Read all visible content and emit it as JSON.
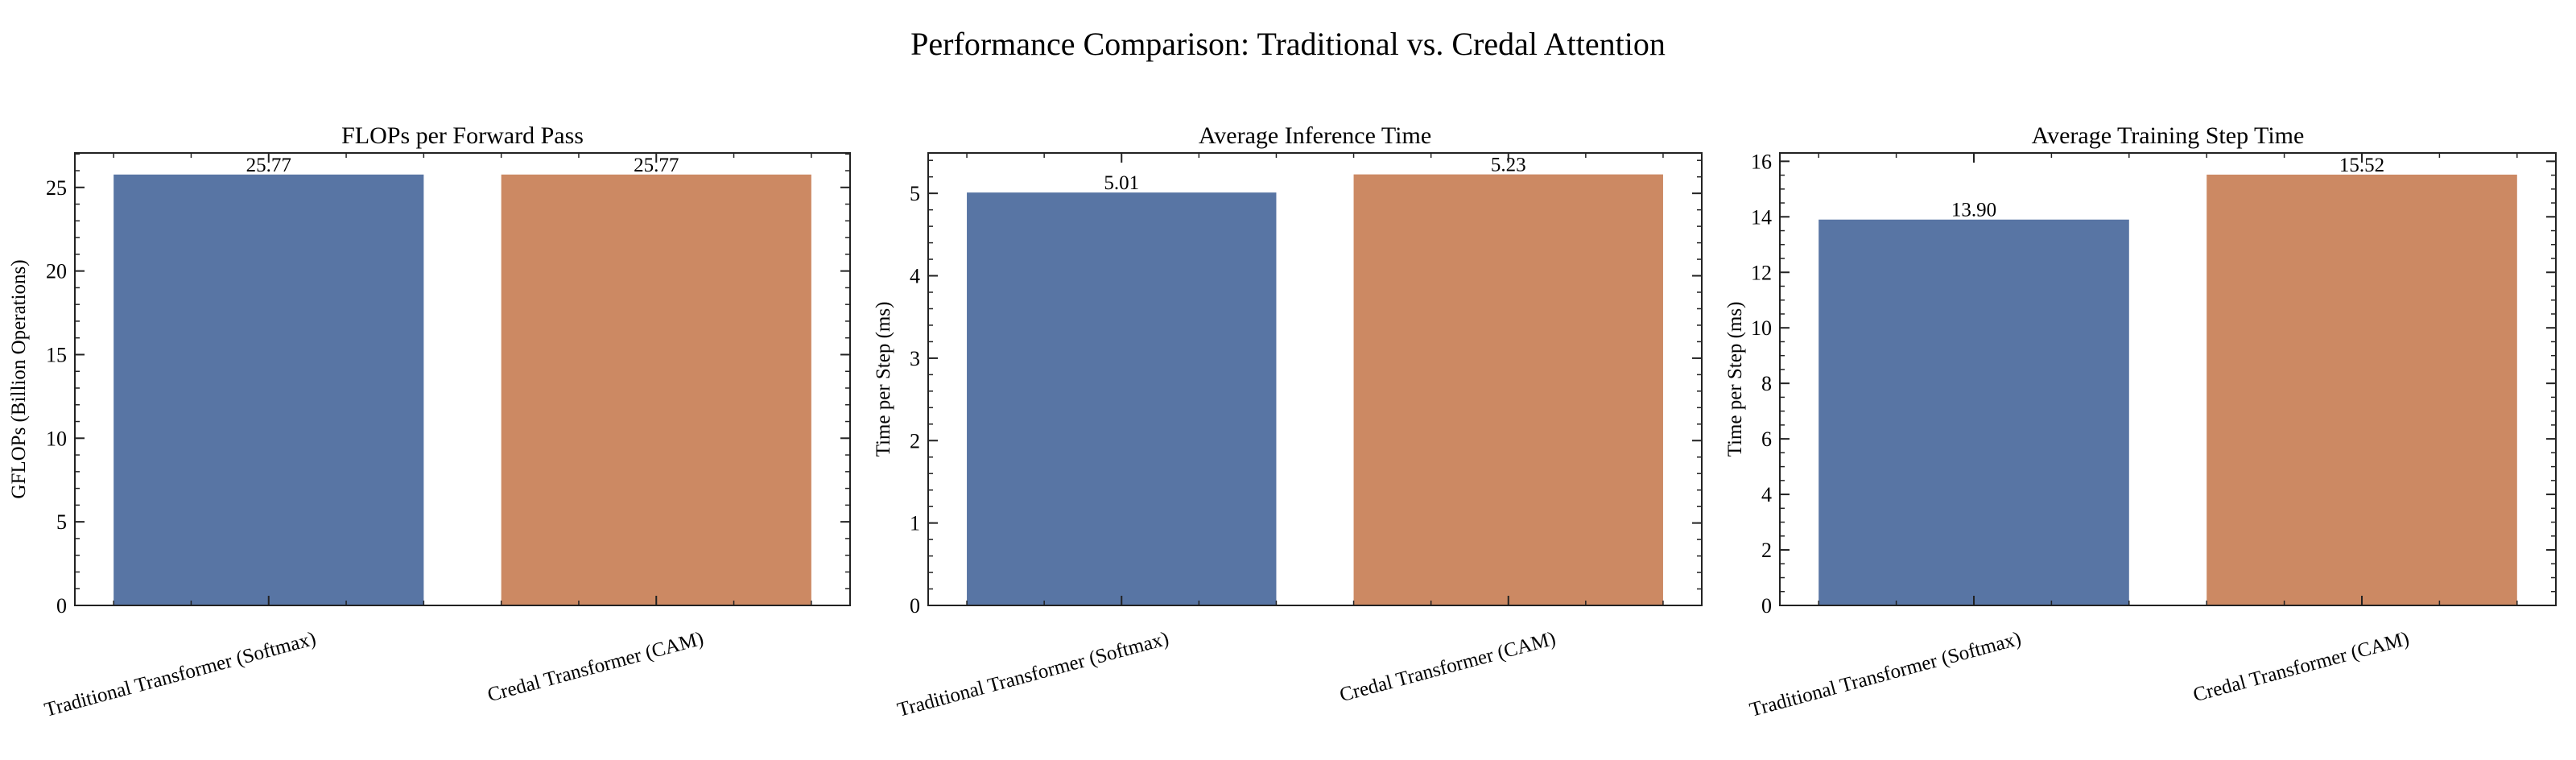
{
  "chart_data": {
    "title": "Performance Comparison: Traditional vs. Credal Attention",
    "colors": [
      "#5875a4",
      "#cc8963"
    ],
    "panels": [
      {
        "type": "bar",
        "title": "FLOPs per Forward Pass",
        "ylabel": "GFLOPs (Billion Operations)",
        "xlabel": "",
        "categories": [
          "Traditional Transformer (Softmax)",
          "Credal Transformer (CAM)"
        ],
        "values": [
          25.77,
          25.77
        ],
        "value_labels": [
          "25.77",
          "25.77"
        ],
        "ylim": [
          0,
          27.06
        ],
        "yticks": [
          0,
          5,
          10,
          15,
          20,
          25
        ],
        "yminor": 1
      },
      {
        "type": "bar",
        "title": "Average Inference Time",
        "ylabel": "Time per Step (ms)",
        "xlabel": "",
        "categories": [
          "Traditional Transformer (Softmax)",
          "Credal Transformer (CAM)"
        ],
        "values": [
          5.01,
          5.23
        ],
        "value_labels": [
          "5.01",
          "5.23"
        ],
        "ylim": [
          0,
          5.49
        ],
        "yticks": [
          0,
          1,
          2,
          3,
          4,
          5
        ],
        "yminor": 0.2
      },
      {
        "type": "bar",
        "title": "Average Training Step Time",
        "ylabel": "Time per Step (ms)",
        "xlabel": "",
        "categories": [
          "Traditional Transformer (Softmax)",
          "Credal Transformer (CAM)"
        ],
        "values": [
          13.9,
          15.52
        ],
        "value_labels": [
          "13.90",
          "15.52"
        ],
        "ylim": [
          0,
          16.3
        ],
        "yticks": [
          0,
          2,
          4,
          6,
          8,
          10,
          12,
          14,
          16
        ],
        "yminor": 0.5
      }
    ]
  }
}
